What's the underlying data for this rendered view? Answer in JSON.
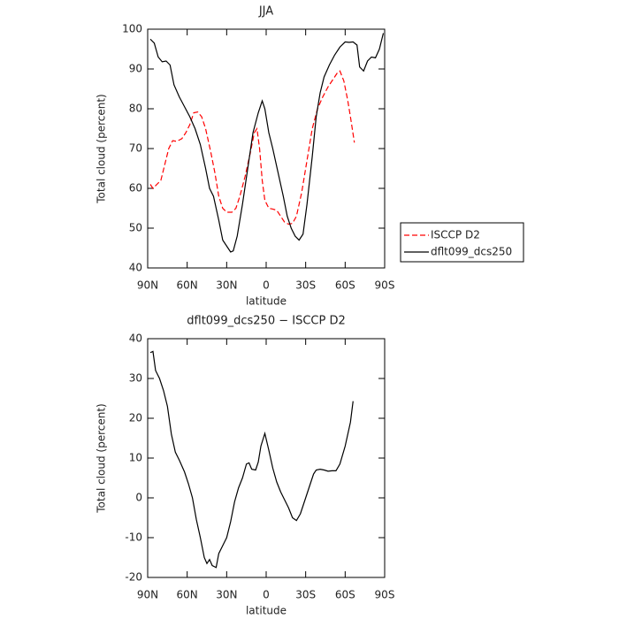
{
  "chart_data": [
    {
      "type": "line",
      "title": "JJA",
      "xlabel": "latitude",
      "ylabel": "Total cloud (percent)",
      "xlim": [
        90,
        -90
      ],
      "xticks": [
        {
          "value": 90,
          "label": "90N"
        },
        {
          "value": 60,
          "label": "60N"
        },
        {
          "value": 30,
          "label": "30N"
        },
        0,
        {
          "value": -30,
          "label": "30S"
        },
        {
          "value": -60,
          "label": "60S"
        },
        {
          "value": -90,
          "label": "90S"
        }
      ],
      "ylim": [
        40,
        100
      ],
      "yticks": [
        40,
        50,
        60,
        70,
        80,
        90,
        100
      ],
      "legend": "right",
      "series": [
        {
          "name": "ISCCP D2",
          "color": "#ff0000",
          "linestyle": "dashed",
          "x": [
            88,
            86,
            83,
            80,
            77,
            74,
            71,
            68,
            64,
            61,
            58,
            55,
            52,
            49,
            46,
            42,
            39,
            36,
            33,
            30,
            26,
            23,
            20,
            16,
            12,
            9,
            7,
            5,
            3,
            1,
            -2,
            -5,
            -8,
            -11,
            -14,
            -17,
            -20,
            -23,
            -27,
            -31,
            -35,
            -39,
            -43,
            -47,
            -51,
            -54,
            -56,
            -59,
            -62,
            -64,
            -67
          ],
          "values": [
            61,
            60,
            61,
            62,
            66,
            70,
            72,
            71.8,
            72.5,
            74,
            76,
            79,
            79.2,
            78,
            75,
            69,
            64,
            58,
            55,
            54,
            54,
            55,
            58,
            63,
            69,
            74,
            75,
            70,
            62,
            57,
            55,
            54.8,
            54.5,
            53,
            51.5,
            51,
            51.2,
            53,
            59,
            67,
            75,
            80,
            83,
            85.5,
            87.5,
            89,
            89.5,
            87,
            82,
            78,
            71.5
          ]
        },
        {
          "name": "dflt099_dcs250",
          "color": "#000000",
          "linestyle": "solid",
          "x": [
            88,
            85,
            82,
            79,
            76,
            73,
            70,
            66,
            62,
            58,
            54,
            50,
            46,
            43,
            40,
            36,
            33,
            30,
            27,
            25,
            22,
            18,
            14,
            10,
            6,
            3,
            1,
            -2,
            -5,
            -9,
            -13,
            -16,
            -19,
            -22,
            -25,
            -28,
            -31,
            -35,
            -38,
            -41,
            -44,
            -48,
            -52,
            -56,
            -60,
            -63,
            -66,
            -69,
            -71,
            -74,
            -77,
            -80,
            -83,
            -86,
            -89
          ],
          "values": [
            97.5,
            96.5,
            93,
            91.8,
            92,
            91,
            86,
            83,
            80.5,
            78,
            75,
            71,
            65,
            60,
            58,
            52,
            47,
            45.5,
            44,
            44.3,
            48,
            56,
            65,
            74,
            79,
            82,
            80,
            74,
            70,
            64,
            58,
            53,
            50,
            48,
            47,
            48.5,
            56,
            68,
            78,
            84,
            88,
            91,
            93.5,
            95.5,
            96.8,
            96.7,
            96.8,
            96,
            90.5,
            89.5,
            92,
            93,
            92.8,
            95,
            99
          ]
        }
      ]
    },
    {
      "type": "line",
      "title": "dflt099_dcs250 − ISCCP D2",
      "xlabel": "latitude",
      "ylabel": "Total cloud (percent)",
      "xlim": [
        90,
        -90
      ],
      "xticks": [
        {
          "value": 90,
          "label": "90N"
        },
        {
          "value": 60,
          "label": "60N"
        },
        {
          "value": 30,
          "label": "30N"
        },
        0,
        {
          "value": -30,
          "label": "30S"
        },
        {
          "value": -60,
          "label": "60S"
        },
        {
          "value": -90,
          "label": "90S"
        }
      ],
      "ylim": [
        -20,
        40
      ],
      "yticks": [
        -20,
        -10,
        0,
        10,
        20,
        30,
        40
      ],
      "series": [
        {
          "color": "#000000",
          "linestyle": "solid",
          "x": [
            88,
            86,
            84,
            81,
            78,
            75,
            72,
            69,
            66,
            62,
            59,
            56,
            53,
            50,
            47,
            45,
            43,
            41,
            38,
            36,
            33,
            30,
            27,
            24,
            21,
            18,
            15,
            13,
            11,
            8,
            6,
            4,
            1,
            -2,
            -5,
            -8,
            -11,
            -14,
            -17,
            -20,
            -23,
            -26,
            -29,
            -32,
            -34,
            -36,
            -38,
            -41,
            -44,
            -47,
            -50,
            -53,
            -56,
            -60,
            -64,
            -66
          ],
          "values": [
            36.5,
            36.8,
            32,
            30,
            27,
            23,
            16,
            11.5,
            9.5,
            6.5,
            3.5,
            0,
            -5.5,
            -10,
            -15,
            -16.5,
            -15.5,
            -17,
            -17.5,
            -14,
            -12,
            -10,
            -6,
            -1,
            2.5,
            5,
            8.5,
            8.8,
            7.2,
            7,
            9,
            13,
            16.2,
            12,
            7.5,
            4,
            1.5,
            -0.5,
            -2.5,
            -5,
            -5.7,
            -4,
            -1,
            2,
            4,
            6,
            7,
            7.2,
            7,
            6.7,
            6.8,
            6.8,
            8.5,
            13,
            19,
            24.3
          ]
        }
      ]
    }
  ]
}
